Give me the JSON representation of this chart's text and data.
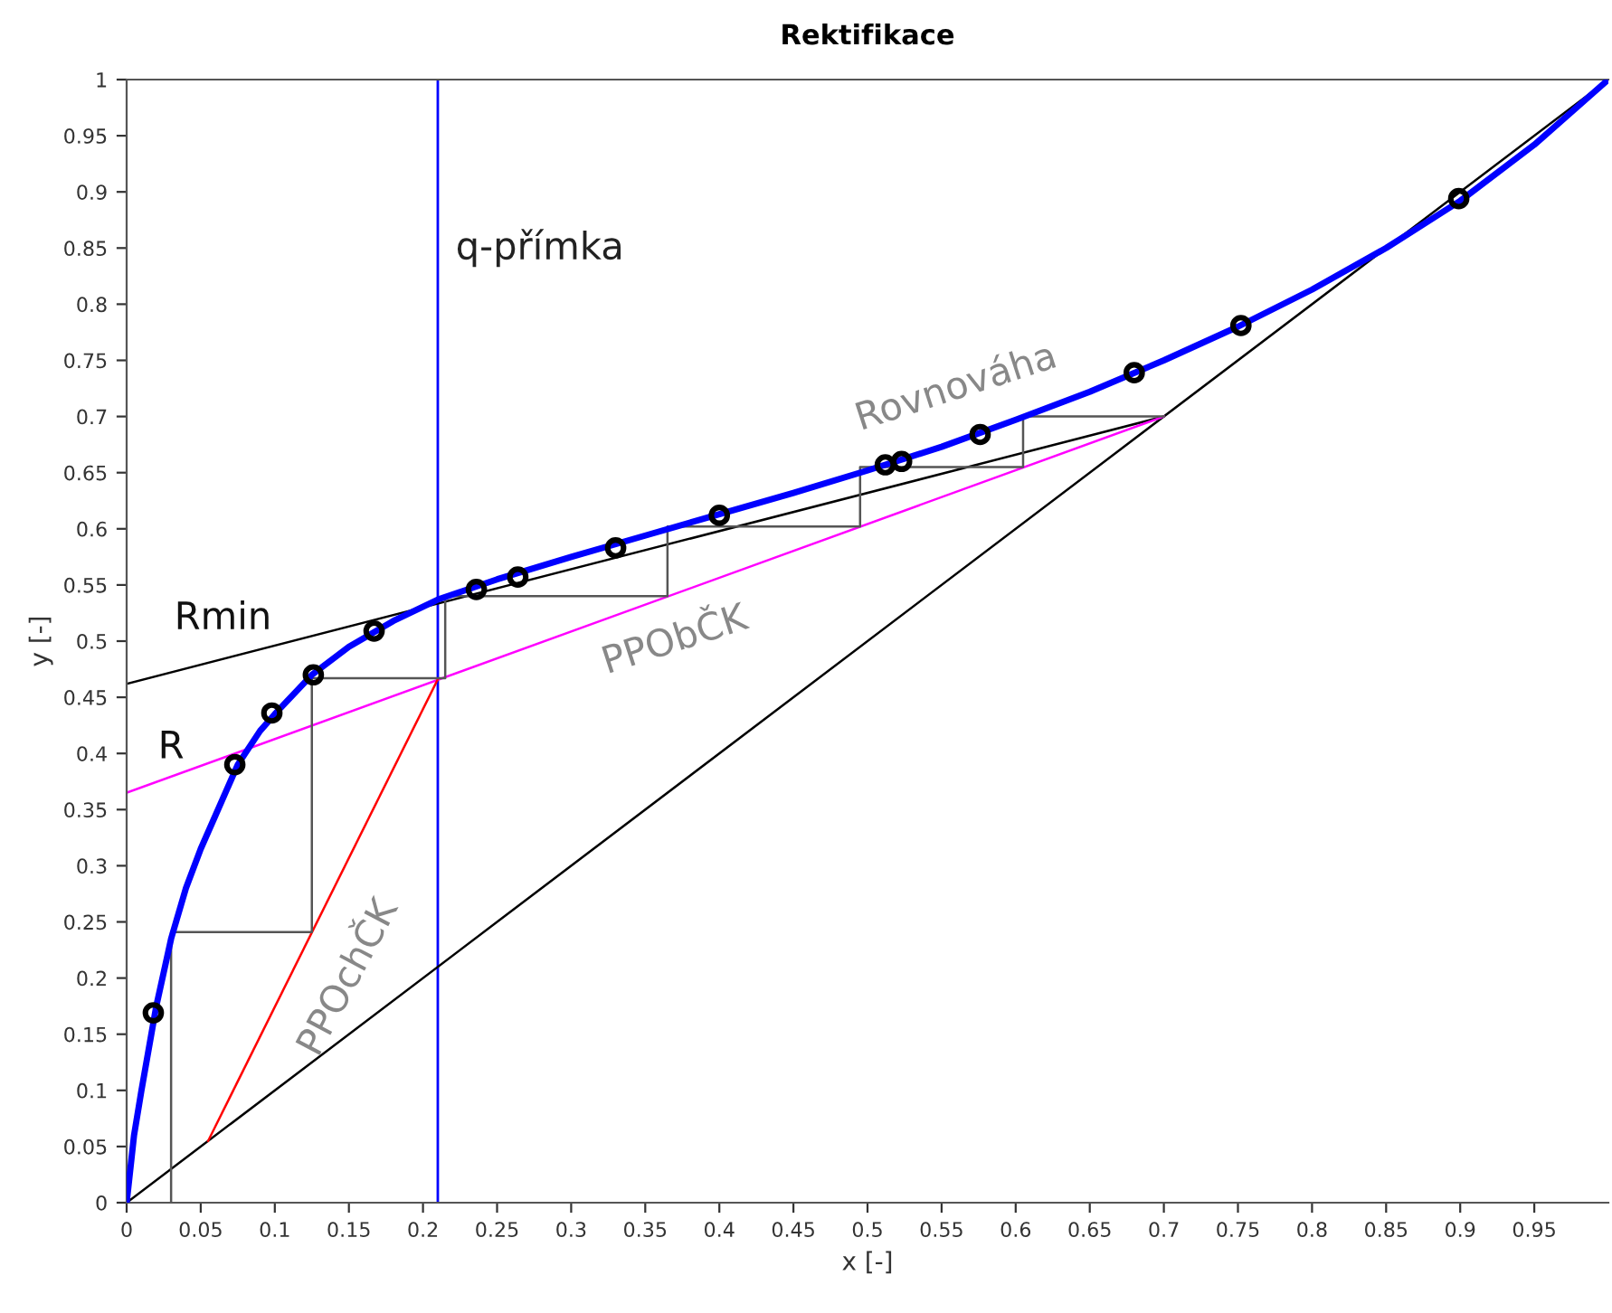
{
  "chart_data": {
    "type": "line",
    "title": "Rektifikace",
    "xlabel": "x [-]",
    "ylabel": "y [-]",
    "xlim": [
      0,
      1
    ],
    "ylim": [
      0,
      1
    ],
    "xticks": [
      0,
      0.05,
      0.1,
      0.15,
      0.2,
      0.25,
      0.3,
      0.35,
      0.4,
      0.45,
      0.5,
      0.55,
      0.6,
      0.65,
      0.7,
      0.75,
      0.8,
      0.85,
      0.9,
      0.95
    ],
    "yticks": [
      0,
      0.05,
      0.1,
      0.15,
      0.2,
      0.25,
      0.3,
      0.35,
      0.4,
      0.45,
      0.5,
      0.55,
      0.6,
      0.65,
      0.7,
      0.75,
      0.8,
      0.85,
      0.9,
      0.95,
      1
    ],
    "series": [
      {
        "color": "#000000",
        "x": [
          0,
          1
        ],
        "values": [
          0,
          1
        ]
      },
      {
        "name": "Rmin",
        "color": "#000000",
        "x": [
          0,
          0.7
        ],
        "values": [
          0.462,
          0.7
        ]
      },
      {
        "name": "PPObČK",
        "color": "#ff00ff",
        "x": [
          0,
          0.7
        ],
        "values": [
          0.365,
          0.7
        ]
      },
      {
        "name": "PPOchČK",
        "color": "#ff0000",
        "x": [
          0.055,
          0.21
        ],
        "values": [
          0.055,
          0.466
        ]
      },
      {
        "color": "#555555",
        "x": [
          0.7,
          0.605,
          0.605,
          0.495,
          0.495,
          0.365,
          0.365,
          0.215,
          0.215,
          0.125,
          0.125,
          0.03,
          0.03
        ],
        "values": [
          0.7,
          0.7,
          0.655,
          0.655,
          0.602,
          0.602,
          0.54,
          0.54,
          0.467,
          0.467,
          0.241,
          0.241,
          0
        ]
      },
      {
        "name": "Rovnováha",
        "color": "#0000ff",
        "x": [
          0,
          0.005,
          0.01,
          0.02,
          0.03,
          0.04,
          0.05,
          0.06,
          0.075,
          0.09,
          0.1,
          0.125,
          0.15,
          0.18,
          0.21,
          0.25,
          0.3,
          0.35,
          0.4,
          0.45,
          0.5,
          0.55,
          0.6,
          0.65,
          0.7,
          0.75,
          0.8,
          0.85,
          0.9,
          0.95,
          1
        ],
        "values": [
          0,
          0.06,
          0.1,
          0.175,
          0.235,
          0.28,
          0.315,
          0.345,
          0.39,
          0.42,
          0.435,
          0.47,
          0.495,
          0.518,
          0.537,
          0.555,
          0.575,
          0.594,
          0.613,
          0.632,
          0.652,
          0.673,
          0.697,
          0.722,
          0.75,
          0.78,
          0.813,
          0.85,
          0.892,
          0.942,
          1
        ]
      },
      {
        "type": "scatter",
        "color": "#000000",
        "marker": "circle",
        "x": [
          0.018,
          0.073,
          0.098,
          0.126,
          0.167,
          0.236,
          0.264,
          0.33,
          0.4,
          0.512,
          0.523,
          0.576,
          0.68,
          0.752,
          0.899
        ],
        "values": [
          0.169,
          0.39,
          0.436,
          0.47,
          0.509,
          0.546,
          0.557,
          0.583,
          0.612,
          0.657,
          0.66,
          0.684,
          0.739,
          0.781,
          0.894
        ]
      }
    ],
    "ref_lines": [
      {
        "axis": "x",
        "value": 0.21,
        "label": "q-přímka",
        "color": "#0000ff"
      }
    ],
    "annotations": [
      "R"
    ]
  }
}
